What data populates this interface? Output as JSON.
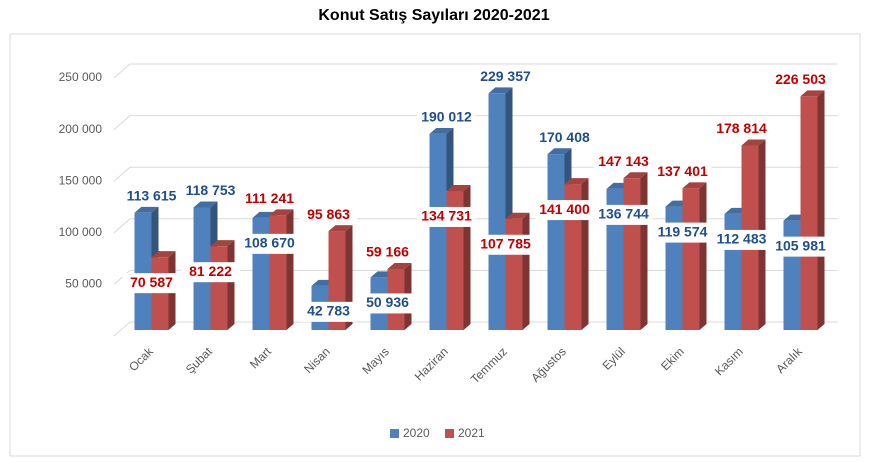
{
  "chart_data": {
    "type": "bar3d",
    "title": "Konut Satış Sayıları 2020-2021",
    "categories": [
      "Ocak",
      "Şubat",
      "Mart",
      "Nisan",
      "Mayıs",
      "Haziran",
      "Temmuz",
      "Ağustos",
      "Eylül",
      "Ekim",
      "Kasım",
      "Aralık"
    ],
    "series": [
      {
        "name": "2020",
        "color": "#4f81bd",
        "label_color": "#1f4e8c",
        "values": [
          113615,
          118753,
          108670,
          42783,
          50936,
          190012,
          229357,
          170408,
          136744,
          119574,
          112483,
          105981
        ],
        "value_labels": [
          "113 615",
          "118 753",
          "108 670",
          "42 783",
          "50 936",
          "190 012",
          "229 357",
          "170 408",
          "136 744",
          "119 574",
          "112 483",
          "105 981"
        ]
      },
      {
        "name": "2021",
        "color": "#c0504d",
        "label_color": "#c00000",
        "values": [
          70587,
          81222,
          111241,
          95863,
          59166,
          134731,
          107785,
          141400,
          147143,
          137401,
          178814,
          226503
        ],
        "value_labels": [
          "70 587",
          "81 222",
          "111 241",
          "95 863",
          "59 166",
          "134 731",
          "107 785",
          "141 400",
          "147 143",
          "137 401",
          "178 814",
          "226 503"
        ]
      }
    ],
    "ylim": [
      0,
      250000
    ],
    "yticks": [
      {
        "value": 50000,
        "label": "50 000"
      },
      {
        "value": 100000,
        "label": "100 000"
      },
      {
        "value": 150000,
        "label": "150 000"
      },
      {
        "value": 200000,
        "label": "200 000"
      },
      {
        "value": 250000,
        "label": "250 000"
      }
    ],
    "grid": true,
    "legend": "bottom"
  }
}
